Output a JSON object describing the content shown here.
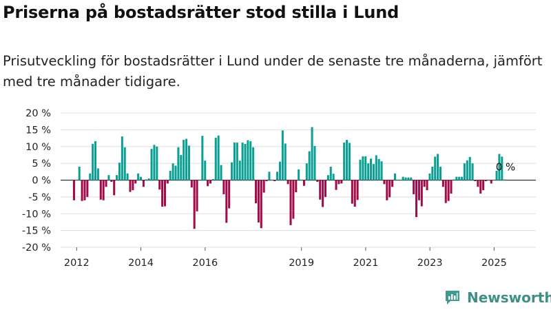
{
  "header": {
    "title": "Priserna på bostadsrätter stod stilla i Lund",
    "subtitle": "Prisutveckling för bostadsrätter i Lund under de senaste tre månaderna, jämfört med tre månader tidigare."
  },
  "brand": {
    "name": "Newsworthy",
    "icon": "bar-chart-logo-icon",
    "color": "#3f9a90"
  },
  "chart_data": {
    "type": "bar",
    "title": "Priserna på bostadsrätter stod stilla i Lund",
    "xlabel": "",
    "ylabel": "",
    "ylim": [
      -20,
      20
    ],
    "y_ticks": [
      20,
      15,
      10,
      5,
      0,
      -5,
      -10,
      -15,
      -20
    ],
    "y_tick_format": "%",
    "x_ticks": [
      {
        "label": "2012",
        "x": 2012.0
      },
      {
        "label": "2014",
        "x": 2014.0
      },
      {
        "label": "2016",
        "x": 2016.0
      },
      {
        "label": "2019",
        "x": 2019.0
      },
      {
        "label": "2021",
        "x": 2021.0
      },
      {
        "label": "2023",
        "x": 2023.0
      },
      {
        "label": "2025",
        "x": 2025.0
      }
    ],
    "x_start": 2011.917,
    "x_step": 0.0833,
    "grid": true,
    "positive_color": "#0b9e92",
    "negative_color": "#a00c4a",
    "last_label": "0 %",
    "values": [
      -6,
      0,
      4,
      -6.2,
      -6,
      -5,
      2,
      10.8,
      11.6,
      3.5,
      -5.8,
      -6,
      -2,
      1.5,
      -0.5,
      -4.5,
      1.5,
      5.2,
      13,
      9.8,
      2,
      -3.5,
      -3,
      -1,
      2,
      1,
      -2,
      0.2,
      0.5,
      9.3,
      10.5,
      10,
      -2.8,
      -7.9,
      -7.8,
      -1,
      2.8,
      5,
      4.3,
      9.8,
      7.5,
      12,
      12.3,
      10.3,
      -2.2,
      -14.5,
      -9.3,
      0,
      13.2,
      5.8,
      -1.8,
      -1,
      0.3,
      12.6,
      13.3,
      4.5,
      -4.2,
      -12.7,
      -8.4,
      5.3,
      11.2,
      11.2,
      5.8,
      11.2,
      10.8,
      11.9,
      11.6,
      9.8,
      -6.9,
      -12.6,
      -14.3,
      -3.7,
      -0.3,
      2.5,
      0,
      -0.3,
      2.5,
      5.5,
      14.8,
      10.9,
      -1.2,
      -13.4,
      -11.5,
      -3.6,
      3.2,
      0,
      -1.7,
      5,
      8.6,
      15.8,
      10.2,
      -0.5,
      -5.8,
      -8,
      -5,
      1.5,
      4,
      1.9,
      -2.9,
      -1.2,
      -1,
      11.2,
      12,
      11.1,
      -7,
      -7.9,
      -5.9,
      6.1,
      7.1,
      7.1,
      5,
      6.4,
      4.8,
      7.4,
      6.3,
      5.6,
      -1.2,
      -6,
      -5.1,
      -2,
      2,
      0,
      0,
      1,
      0.8,
      0.8,
      0.8,
      -4.2,
      -11,
      -6,
      -7.8,
      -2,
      -3,
      2,
      4,
      7,
      7.8,
      4,
      -2,
      -6.8,
      -6.2,
      -4,
      0.2,
      1,
      1,
      1,
      5,
      5.9,
      6.9,
      5,
      -0.3,
      -2,
      -4,
      -3,
      -0.3,
      0,
      -1,
      0,
      2.8,
      7.8,
      7,
      0.2
    ]
  }
}
